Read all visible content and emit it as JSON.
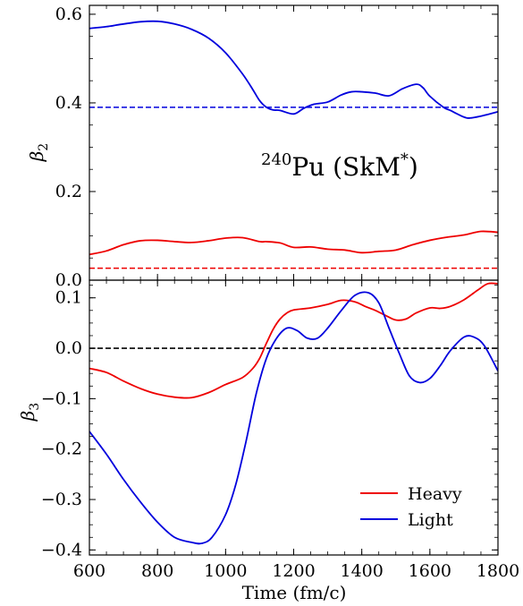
{
  "chart_data": [
    {
      "type": "line",
      "panel": "top",
      "ylabel_symbol": "β",
      "ylabel_sub": "2",
      "xlim": [
        600,
        1800
      ],
      "ylim": [
        0.0,
        0.62
      ],
      "yticks": [
        0.0,
        0.2,
        0.4,
        0.6
      ],
      "ytick_labels": [
        "0.0",
        "0.2",
        "0.4",
        "0.6"
      ],
      "annotation": {
        "sup": "240",
        "text": "Pu (SkM",
        "star": "*",
        "close": ")"
      },
      "series": [
        {
          "name": "Light",
          "color": "#0000dd",
          "x": [
            600,
            650,
            700,
            750,
            800,
            850,
            900,
            950,
            1000,
            1050,
            1080,
            1100,
            1120,
            1140,
            1160,
            1200,
            1230,
            1260,
            1300,
            1340,
            1370,
            1400,
            1440,
            1480,
            1520,
            1560,
            1580,
            1600,
            1640,
            1660,
            1700,
            1720,
            1760,
            1800
          ],
          "y": [
            0.568,
            0.572,
            0.578,
            0.583,
            0.584,
            0.578,
            0.566,
            0.546,
            0.513,
            0.465,
            0.43,
            0.405,
            0.39,
            0.384,
            0.383,
            0.375,
            0.388,
            0.397,
            0.402,
            0.418,
            0.425,
            0.425,
            0.422,
            0.416,
            0.432,
            0.442,
            0.434,
            0.415,
            0.39,
            0.383,
            0.368,
            0.366,
            0.372,
            0.38
          ]
        },
        {
          "name": "Heavy",
          "color": "#ee0000",
          "x": [
            600,
            650,
            700,
            750,
            800,
            850,
            900,
            950,
            1000,
            1050,
            1100,
            1120,
            1160,
            1200,
            1250,
            1300,
            1350,
            1400,
            1450,
            1500,
            1550,
            1600,
            1650,
            1700,
            1750,
            1800
          ],
          "y": [
            0.058,
            0.066,
            0.08,
            0.089,
            0.09,
            0.087,
            0.085,
            0.089,
            0.095,
            0.096,
            0.087,
            0.087,
            0.084,
            0.074,
            0.075,
            0.07,
            0.068,
            0.062,
            0.065,
            0.068,
            0.08,
            0.09,
            0.097,
            0.102,
            0.11,
            0.108
          ]
        }
      ],
      "hlines": [
        {
          "y": 0.39,
          "color": "#0000dd",
          "style": "dashed"
        },
        {
          "y": 0.027,
          "color": "#ee0000",
          "style": "dashed"
        }
      ]
    },
    {
      "type": "line",
      "panel": "bottom",
      "ylabel_symbol": "β",
      "ylabel_sub": "3",
      "xlabel": "Time (fm/c)",
      "xlim": [
        600,
        1800
      ],
      "ylim": [
        -0.41,
        0.135
      ],
      "xticks": [
        600,
        800,
        1000,
        1200,
        1400,
        1600,
        1800
      ],
      "xtick_labels": [
        "600",
        "800",
        "1000",
        "1200",
        "1400",
        "1600",
        "1800"
      ],
      "yticks": [
        -0.4,
        -0.3,
        -0.2,
        -0.1,
        0.0,
        0.1
      ],
      "ytick_labels": [
        "−0.4",
        "−0.3",
        "−0.2",
        "−0.1",
        "0.0",
        "0.1"
      ],
      "legend_position": "bottom-right",
      "series": [
        {
          "name": "Heavy",
          "color": "#ee0000",
          "x": [
            600,
            650,
            700,
            750,
            800,
            850,
            900,
            950,
            1000,
            1050,
            1080,
            1100,
            1120,
            1140,
            1160,
            1180,
            1200,
            1250,
            1300,
            1340,
            1380,
            1410,
            1440,
            1470,
            1500,
            1530,
            1560,
            1600,
            1630,
            1660,
            1700,
            1740,
            1770,
            1800
          ],
          "y": [
            -0.04,
            -0.048,
            -0.065,
            -0.08,
            -0.091,
            -0.097,
            -0.098,
            -0.088,
            -0.072,
            -0.058,
            -0.04,
            -0.02,
            0.01,
            0.038,
            0.058,
            0.07,
            0.076,
            0.08,
            0.087,
            0.095,
            0.092,
            0.083,
            0.075,
            0.065,
            0.056,
            0.058,
            0.07,
            0.08,
            0.079,
            0.083,
            0.096,
            0.115,
            0.128,
            0.128
          ]
        },
        {
          "name": "Light",
          "color": "#0000dd",
          "x": [
            600,
            650,
            700,
            750,
            800,
            850,
            900,
            930,
            960,
            1000,
            1030,
            1060,
            1090,
            1120,
            1150,
            1180,
            1210,
            1240,
            1270,
            1300,
            1340,
            1380,
            1420,
            1450,
            1480,
            1510,
            1540,
            1570,
            1600,
            1630,
            1660,
            1700,
            1730,
            1760,
            1800
          ],
          "y": [
            -0.165,
            -0.21,
            -0.26,
            -0.305,
            -0.345,
            -0.375,
            -0.385,
            -0.387,
            -0.375,
            -0.33,
            -0.27,
            -0.185,
            -0.09,
            -0.02,
            0.02,
            0.04,
            0.035,
            0.02,
            0.02,
            0.04,
            0.075,
            0.105,
            0.11,
            0.09,
            0.04,
            -0.01,
            -0.055,
            -0.068,
            -0.06,
            -0.035,
            -0.005,
            0.022,
            0.022,
            0.005,
            -0.045
          ]
        }
      ],
      "hlines": [
        {
          "y": 0.0,
          "color": "#000000",
          "style": "dashed"
        }
      ]
    }
  ],
  "legend": [
    {
      "label": "Heavy",
      "color": "#ee0000"
    },
    {
      "label": "Light",
      "color": "#0000dd"
    }
  ]
}
